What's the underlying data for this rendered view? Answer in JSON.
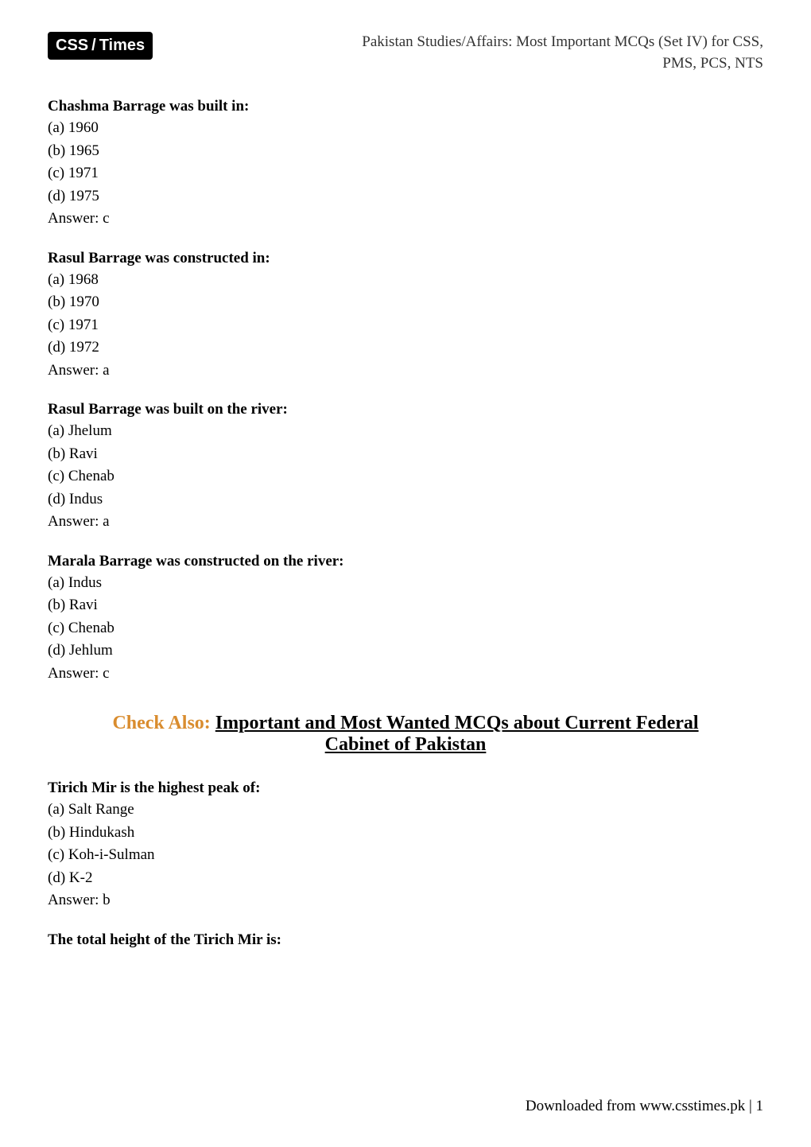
{
  "header": {
    "logo_css": "CSS",
    "logo_divider": "/",
    "logo_times": "Times",
    "title_line1": "Pakistan Studies/Affairs: Most Important MCQs (Set IV) for CSS,",
    "title_line2": "PMS, PCS, NTS"
  },
  "questions": [
    {
      "text": "Chashma Barrage was built in:",
      "options": [
        "(a) 1960",
        "(b) 1965",
        "(c) 1971",
        "(d) 1975"
      ],
      "answer": "Answer: c"
    },
    {
      "text": "Rasul Barrage was constructed in:",
      "options": [
        "(a) 1968",
        "(b) 1970",
        "(c) 1971",
        "(d) 1972"
      ],
      "answer": "Answer: a"
    },
    {
      "text": "Rasul Barrage was built on the river:",
      "options": [
        "(a) Jhelum",
        "(b) Ravi",
        "(c) Chenab",
        "(d) Indus"
      ],
      "answer": "Answer: a"
    },
    {
      "text": "Marala Barrage was constructed on the river:",
      "options": [
        "(a) Indus",
        "(b) Ravi",
        "(c) Chenab",
        "(d) Jehlum"
      ],
      "answer": "Answer: c"
    }
  ],
  "check_also": {
    "label": "Check Also: ",
    "link_line1": "Important and Most Wanted MCQs about Current Federal",
    "link_line2": "Cabinet of Pakistan"
  },
  "questions_after": [
    {
      "text": "Tirich Mir is the highest peak of:",
      "options": [
        "(a) Salt Range",
        "(b) Hindukash",
        "(c) Koh-i-Sulman",
        "(d) K-2"
      ],
      "answer": "Answer: b"
    },
    {
      "text": "The total height of the Tirich Mir is:",
      "options": [],
      "answer": ""
    }
  ],
  "footer": {
    "text": "Downloaded from www.csstimes.pk | 1"
  },
  "colors": {
    "logo_bg": "#000000",
    "logo_text": "#ffffff",
    "body_text": "#000000",
    "check_also_label": "#d98c2e",
    "background": "#ffffff"
  },
  "typography": {
    "body_font": "Georgia, Times New Roman, serif",
    "logo_font": "Arial, sans-serif",
    "question_fontsize": 19,
    "check_also_fontsize": 24,
    "logo_fontsize": 20
  }
}
